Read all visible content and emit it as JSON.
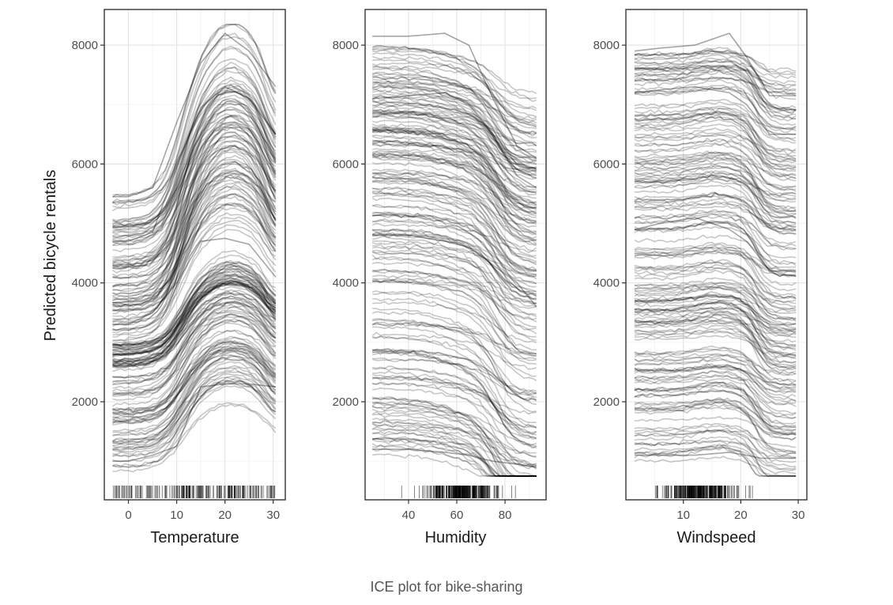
{
  "caption": "ICE plot for bike-sharing",
  "chart_data": [
    {
      "type": "line",
      "subtype": "ice",
      "xlabel": "Temperature",
      "ylabel": "Predicted bicycle rentals",
      "xlim": [
        -5,
        32.5
      ],
      "ylim": [
        350,
        8600
      ],
      "xticks": [
        0,
        10,
        20,
        30
      ],
      "yticks": [
        2000,
        4000,
        6000,
        8000
      ],
      "x_data_range": [
        -3.3,
        30.5
      ],
      "grid": true,
      "line_color": "#000000",
      "rug": true,
      "approx_curve_count": 200,
      "representative_curves": [
        {
          "x": [
            -3.3,
            0,
            5,
            10,
            15,
            20,
            25,
            30.5
          ],
          "y": [
            5450,
            5450,
            5600,
            6700,
            7700,
            8200,
            7900,
            7300
          ]
        },
        {
          "x": [
            -3.3,
            0,
            5,
            10,
            15,
            20,
            25,
            30.5
          ],
          "y": [
            4700,
            4700,
            4850,
            5950,
            6950,
            7300,
            7100,
            6500
          ]
        },
        {
          "x": [
            -3.3,
            0,
            5,
            10,
            15,
            20,
            25,
            30.5
          ],
          "y": [
            3300,
            3300,
            3500,
            4000,
            4700,
            4750,
            4650,
            4100
          ]
        },
        {
          "x": [
            -3.3,
            0,
            5,
            10,
            15,
            20,
            25,
            30.5
          ],
          "y": [
            1000,
            1000,
            1100,
            1250,
            2250,
            2300,
            2300,
            2250
          ]
        }
      ]
    },
    {
      "type": "line",
      "subtype": "ice",
      "xlabel": "Humidity",
      "ylim": [
        350,
        8600
      ],
      "xlim": [
        22,
        97
      ],
      "xticks": [
        40,
        60,
        80
      ],
      "yticks": [
        2000,
        4000,
        6000,
        8000
      ],
      "x_data_range": [
        25,
        93
      ],
      "grid": true,
      "line_color": "#000000",
      "rug": true,
      "approx_curve_count": 200,
      "representative_curves": [
        {
          "x": [
            25,
            40,
            55,
            65,
            75,
            85,
            93
          ],
          "y": [
            8150,
            8150,
            8200,
            8000,
            7100,
            6300,
            6100
          ]
        },
        {
          "x": [
            25,
            40,
            55,
            65,
            75,
            85,
            93
          ],
          "y": [
            7100,
            7150,
            7200,
            7000,
            6500,
            5800,
            5600
          ]
        },
        {
          "x": [
            25,
            40,
            55,
            65,
            75,
            85,
            93
          ],
          "y": [
            4800,
            4800,
            4700,
            4600,
            4300,
            4000,
            3600
          ]
        },
        {
          "x": [
            25,
            40,
            55,
            65,
            75,
            85,
            93
          ],
          "y": [
            1200,
            1200,
            1150,
            1100,
            1000,
            950,
            900
          ]
        }
      ]
    },
    {
      "type": "line",
      "subtype": "ice",
      "xlabel": "Windspeed",
      "ylim": [
        350,
        8600
      ],
      "xlim": [
        0,
        31.5
      ],
      "xticks": [
        10,
        20,
        30
      ],
      "yticks": [
        2000,
        4000,
        6000,
        8000
      ],
      "x_data_range": [
        1.5,
        29.6
      ],
      "grid": true,
      "line_color": "#000000",
      "rug": true,
      "approx_curve_count": 200,
      "representative_curves": [
        {
          "x": [
            1.5,
            6,
            12,
            18,
            21,
            23.5,
            25,
            29.6
          ],
          "y": [
            7900,
            7950,
            8000,
            8200,
            7800,
            7400,
            7150,
            7150
          ]
        },
        {
          "x": [
            1.5,
            6,
            12,
            18,
            21,
            23.5,
            25,
            29.6
          ],
          "y": [
            7200,
            7250,
            7300,
            7200,
            7000,
            6700,
            6500,
            6500
          ]
        },
        {
          "x": [
            1.5,
            6,
            12,
            18,
            21,
            23.5,
            25,
            29.6
          ],
          "y": [
            4900,
            5000,
            5100,
            4900,
            4700,
            4400,
            4200,
            4200
          ]
        },
        {
          "x": [
            1.5,
            6,
            12,
            18,
            21,
            23.5,
            25,
            29.6
          ],
          "y": [
            1100,
            1100,
            1100,
            1150,
            1100,
            1050,
            1050,
            1050
          ]
        }
      ]
    }
  ]
}
